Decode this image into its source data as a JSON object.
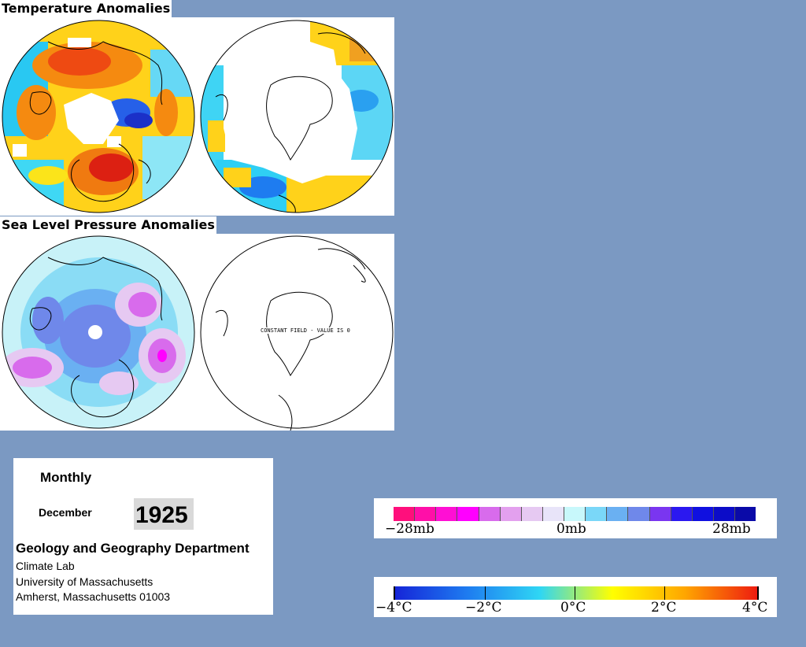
{
  "temperature_section": {
    "title": "Temperature Anomalies"
  },
  "pressure_section": {
    "title": "Sea Level Pressure Anomalies",
    "constant_field_note": "CONSTANT FIELD - VALUE IS 0"
  },
  "info": {
    "period": "Monthly",
    "month": "December",
    "year": "1925",
    "department": "Geology and Geography Department",
    "lab": "Climate Lab",
    "university": "University of Massachusetts",
    "address": "Amherst, Massachusetts 01003"
  },
  "pressure_legend": {
    "labels": [
      "−28mb",
      "0mb",
      "28mb"
    ],
    "colors": [
      "#ff0f7c",
      "#ff0fa8",
      "#ff0fd4",
      "#ff00ff",
      "#d86bec",
      "#e3a0ee",
      "#e6c9f2",
      "#e8e4f9",
      "#c8f8fb",
      "#7ad7f8",
      "#6ab0f2",
      "#6f88ea",
      "#7a36f0",
      "#2b18f0",
      "#1010e0",
      "#0c0cc8",
      "#0a0aa8"
    ]
  },
  "temperature_legend": {
    "labels": [
      "−4°C",
      "−2°C",
      "0°C",
      "2°C",
      "4°C"
    ],
    "gradient": [
      "#1525d8",
      "#1e7cf0",
      "#2fd6f4",
      "#ffff00",
      "#ffa600",
      "#ee1c10"
    ]
  },
  "colors": {
    "background": "#7b99c2"
  }
}
